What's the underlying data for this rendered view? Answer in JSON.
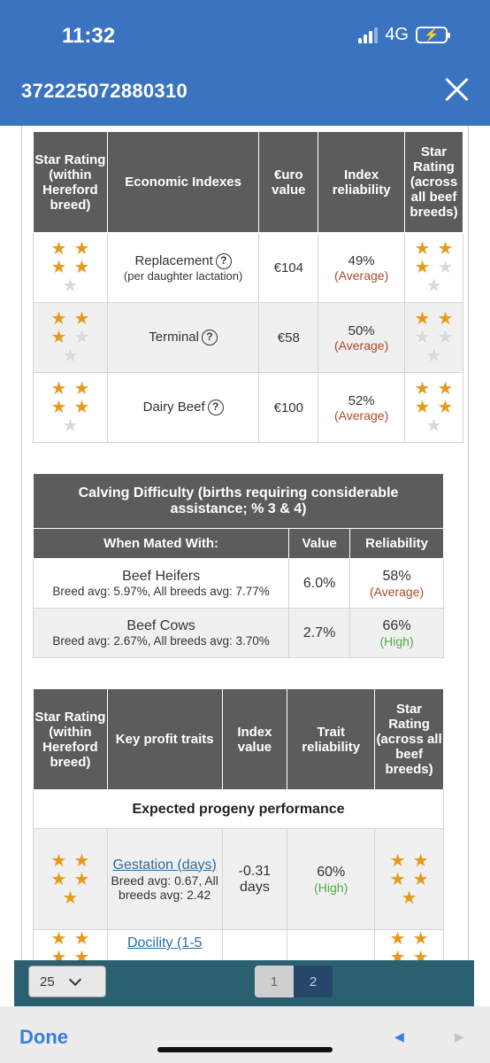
{
  "status": {
    "time": "11:32",
    "network": "4G"
  },
  "header": {
    "title": "372225072880310"
  },
  "economic": {
    "headers": {
      "star_within": "Star Rating (within Hereford breed)",
      "name": "Economic Indexes",
      "value": "€uro value",
      "reliability": "Index reliability",
      "star_across": "Star Rating (across all beef breeds)"
    },
    "rows": [
      {
        "name": "Replacement",
        "sub": "(per daughter lactation)",
        "value": "€104",
        "reliability": "49%",
        "rel_label": "(Average)",
        "stars_within": 4,
        "stars_across": 3
      },
      {
        "name": "Terminal",
        "sub": "",
        "value": "€58",
        "reliability": "50%",
        "rel_label": "(Average)",
        "stars_within": 3,
        "stars_across": 2
      },
      {
        "name": "Dairy Beef",
        "sub": "",
        "value": "€100",
        "reliability": "52%",
        "rel_label": "(Average)",
        "stars_within": 4,
        "stars_across": 4
      }
    ]
  },
  "calving": {
    "title": "Calving Difficulty (births requiring considerable assistance; % 3 & 4)",
    "headers": {
      "mated": "When Mated With:",
      "value": "Value",
      "reliability": "Reliability"
    },
    "rows": [
      {
        "name": "Beef Heifers",
        "avg": "Breed avg: 5.97%, All breeds avg: 7.77%",
        "value": "6.0%",
        "reliability": "58%",
        "rel_label": "(Average)"
      },
      {
        "name": "Beef Cows",
        "avg": "Breed avg: 2.67%, All breeds avg: 3.70%",
        "value": "2.7%",
        "reliability": "66%",
        "rel_label": "(High)"
      }
    ]
  },
  "profit": {
    "headers": {
      "star_within": "Star Rating (within Hereford breed)",
      "name": "Key profit traits",
      "value": "Index value",
      "reliability": "Trait reliability",
      "star_across": "Star Rating (across all beef breeds)"
    },
    "section": "Expected progeny performance",
    "rows": [
      {
        "name": "Gestation (days)",
        "avg": "Breed avg: 0.67, All breeds avg: 2.42",
        "value": "-0.31 days",
        "reliability": "60%",
        "rel_label": "(High)",
        "stars_within": 5,
        "stars_across": 5
      },
      {
        "name": "Docility (1-5",
        "avg": "",
        "value": "",
        "reliability": "",
        "rel_label": "",
        "stars_within": 5,
        "stars_across": 5
      }
    ]
  },
  "pager": {
    "per_page": "25",
    "page1": "1",
    "page2": "2"
  },
  "toolbar": {
    "done": "Done"
  },
  "colors": {
    "header_blue": "#3a73c0",
    "table_header": "#5c5c5c",
    "star": "#e69a1b",
    "average": "#b1472a",
    "high": "#4dab4d"
  }
}
